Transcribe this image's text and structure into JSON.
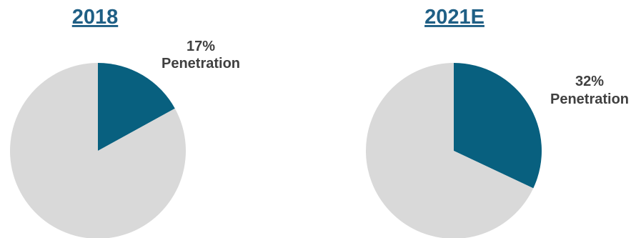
{
  "colors": {
    "title": "#1f5f85",
    "label": "#404040",
    "penetration": "#08607f",
    "remainder": "#d9d9d9"
  },
  "chart_data": [
    {
      "type": "pie",
      "title": "2018",
      "slices": [
        {
          "label": "Penetration",
          "value": 17,
          "color": "#08607f"
        },
        {
          "label": "",
          "value": 83,
          "color": "#d9d9d9"
        }
      ],
      "annotation": {
        "value_text": "17%",
        "name_text": "Penetration"
      }
    },
    {
      "type": "pie",
      "title": "2021E",
      "slices": [
        {
          "label": "Penetration",
          "value": 32,
          "color": "#08607f"
        },
        {
          "label": "",
          "value": 68,
          "color": "#d9d9d9"
        }
      ],
      "annotation": {
        "value_text": "32%",
        "name_text": "Penetration"
      }
    }
  ]
}
